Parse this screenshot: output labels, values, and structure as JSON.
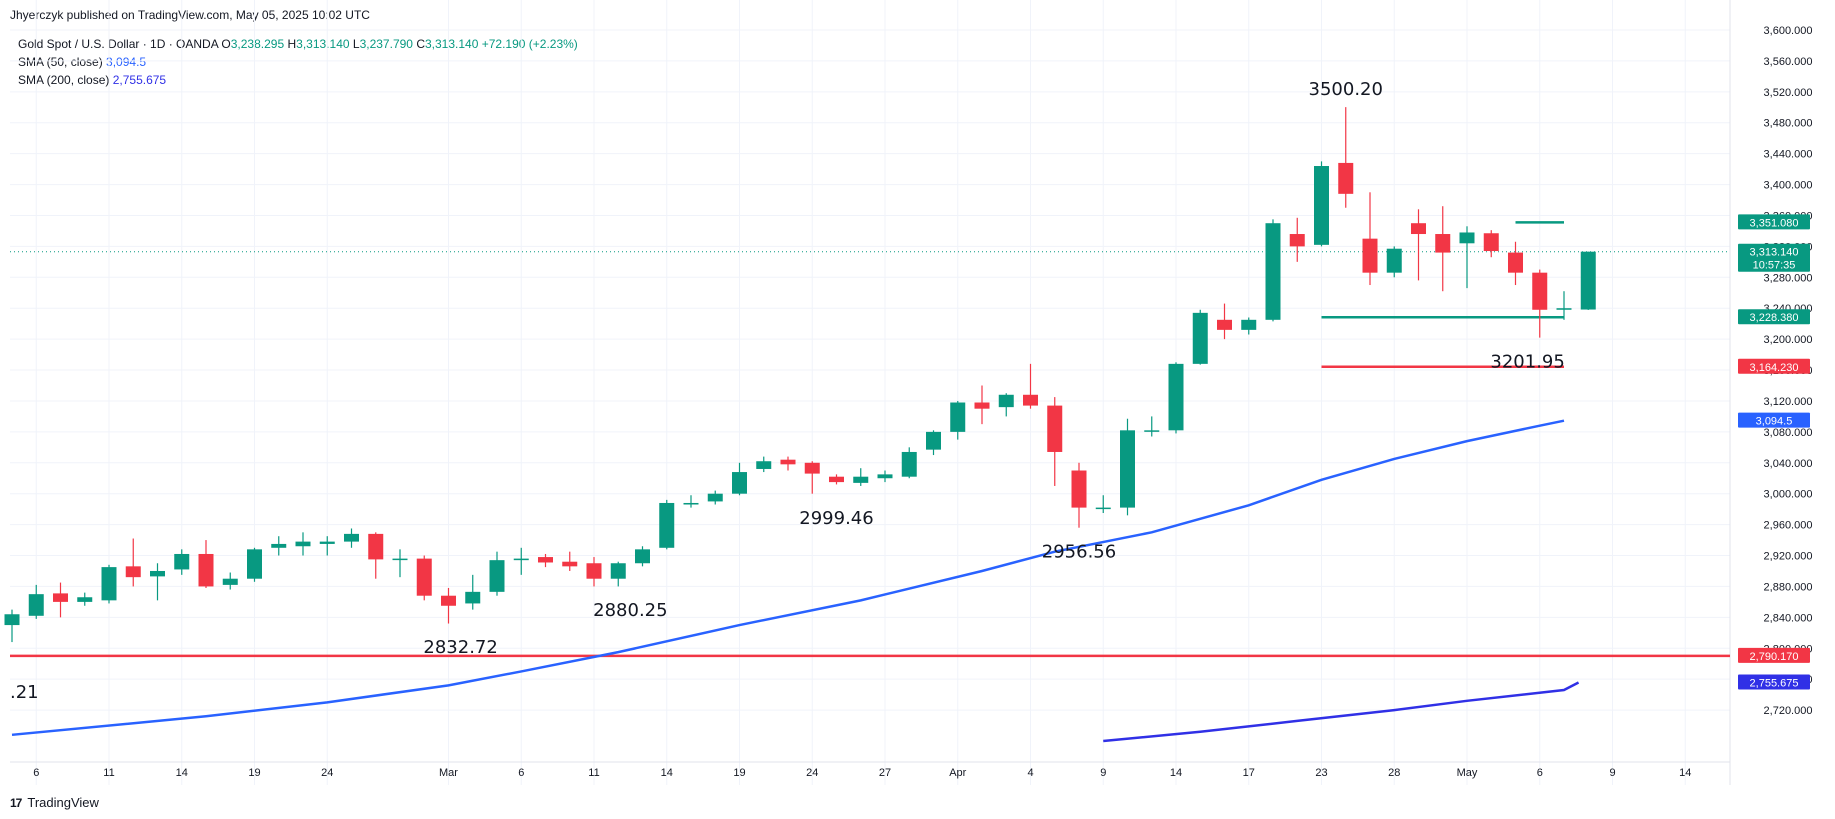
{
  "header": {
    "published": "Jhyerczyk published on TradingView.com, May 05, 2025 10:02 UTC"
  },
  "legend": {
    "symbol": "Gold Spot / U.S. Dollar · 1D · OANDA",
    "o_label": "O",
    "o": "3,238.295",
    "h_label": "H",
    "h": "3,313.140",
    "l_label": "L",
    "l": "3,237.790",
    "c_label": "C",
    "c": "3,313.140",
    "change": "+72.190 (+2.23%)",
    "sma50_label": "SMA (50, close)",
    "sma50_value": "3,094.5",
    "sma200_label": "SMA (200, close)",
    "sma200_value": "2,755.675"
  },
  "footer": {
    "brand": "TradingView",
    "logo_glyph": "17"
  },
  "chart_data": {
    "type": "candlestick",
    "ylim": [
      2680,
      3600
    ],
    "y_ticks": [
      2720,
      2760,
      2800,
      2840,
      2880,
      2920,
      2960,
      3000,
      3040,
      3080,
      3120,
      3160,
      3200,
      3240,
      3280,
      3320,
      3360,
      3400,
      3440,
      3480,
      3520,
      3560,
      3600
    ],
    "x_ticks": [
      {
        "label": "6",
        "index": 1
      },
      {
        "label": "11",
        "index": 4
      },
      {
        "label": "14",
        "index": 7
      },
      {
        "label": "19",
        "index": 10
      },
      {
        "label": "24",
        "index": 13
      },
      {
        "label": "Mar",
        "index": 18
      },
      {
        "label": "6",
        "index": 21
      },
      {
        "label": "11",
        "index": 24
      },
      {
        "label": "14",
        "index": 27
      },
      {
        "label": "19",
        "index": 30
      },
      {
        "label": "24",
        "index": 33
      },
      {
        "label": "27",
        "index": 36
      },
      {
        "label": "Apr",
        "index": 39
      },
      {
        "label": "4",
        "index": 42
      },
      {
        "label": "9",
        "index": 45
      },
      {
        "label": "14",
        "index": 48
      },
      {
        "label": "17",
        "index": 51
      },
      {
        "label": "23",
        "index": 54
      },
      {
        "label": "28",
        "index": 57
      },
      {
        "label": "May",
        "index": 60
      },
      {
        "label": "6",
        "index": 63
      },
      {
        "label": "9",
        "index": 66
      },
      {
        "label": "14",
        "index": 69
      }
    ],
    "candles": [
      {
        "o": 2830,
        "h": 2850,
        "l": 2808,
        "c": 2844
      },
      {
        "o": 2842,
        "h": 2882,
        "l": 2838,
        "c": 2870
      },
      {
        "o": 2871,
        "h": 2885,
        "l": 2840,
        "c": 2860
      },
      {
        "o": 2860,
        "h": 2872,
        "l": 2855,
        "c": 2866
      },
      {
        "o": 2862,
        "h": 2908,
        "l": 2858,
        "c": 2905
      },
      {
        "o": 2906,
        "h": 2942,
        "l": 2880,
        "c": 2892
      },
      {
        "o": 2893,
        "h": 2910,
        "l": 2862,
        "c": 2900
      },
      {
        "o": 2902,
        "h": 2928,
        "l": 2895,
        "c": 2922
      },
      {
        "o": 2922,
        "h": 2940,
        "l": 2878,
        "c": 2880
      },
      {
        "o": 2882,
        "h": 2898,
        "l": 2876,
        "c": 2890
      },
      {
        "o": 2890,
        "h": 2930,
        "l": 2886,
        "c": 2928
      },
      {
        "o": 2930,
        "h": 2945,
        "l": 2920,
        "c": 2935
      },
      {
        "o": 2932,
        "h": 2950,
        "l": 2920,
        "c": 2938
      },
      {
        "o": 2935,
        "h": 2945,
        "l": 2920,
        "c": 2938
      },
      {
        "o": 2938,
        "h": 2955,
        "l": 2930,
        "c": 2948
      },
      {
        "o": 2948,
        "h": 2950,
        "l": 2890,
        "c": 2915
      },
      {
        "o": 2915,
        "h": 2928,
        "l": 2892,
        "c": 2916
      },
      {
        "o": 2916,
        "h": 2920,
        "l": 2862,
        "c": 2868
      },
      {
        "o": 2868,
        "h": 2878,
        "l": 2832,
        "c": 2855
      },
      {
        "o": 2858,
        "h": 2895,
        "l": 2850,
        "c": 2873
      },
      {
        "o": 2873,
        "h": 2925,
        "l": 2868,
        "c": 2914
      },
      {
        "o": 2914,
        "h": 2930,
        "l": 2895,
        "c": 2916
      },
      {
        "o": 2918,
        "h": 2922,
        "l": 2905,
        "c": 2911
      },
      {
        "o": 2912,
        "h": 2925,
        "l": 2900,
        "c": 2906
      },
      {
        "o": 2910,
        "h": 2918,
        "l": 2880,
        "c": 2890
      },
      {
        "o": 2890,
        "h": 2912,
        "l": 2880,
        "c": 2910
      },
      {
        "o": 2910,
        "h": 2932,
        "l": 2906,
        "c": 2928
      },
      {
        "o": 2930,
        "h": 2992,
        "l": 2928,
        "c": 2988
      },
      {
        "o": 2986,
        "h": 2998,
        "l": 2982,
        "c": 2988
      },
      {
        "o": 2990,
        "h": 3004,
        "l": 2986,
        "c": 3000
      },
      {
        "o": 3000,
        "h": 3040,
        "l": 2998,
        "c": 3028
      },
      {
        "o": 3032,
        "h": 3048,
        "l": 3028,
        "c": 3042
      },
      {
        "o": 3044,
        "h": 3048,
        "l": 3030,
        "c": 3038
      },
      {
        "o": 3040,
        "h": 3042,
        "l": 3000,
        "c": 3026
      },
      {
        "o": 3022,
        "h": 3025,
        "l": 3012,
        "c": 3015
      },
      {
        "o": 3014,
        "h": 3033,
        "l": 3010,
        "c": 3022
      },
      {
        "o": 3020,
        "h": 3030,
        "l": 3015,
        "c": 3025
      },
      {
        "o": 3022,
        "h": 3060,
        "l": 3020,
        "c": 3054
      },
      {
        "o": 3057,
        "h": 3082,
        "l": 3050,
        "c": 3080
      },
      {
        "o": 3080,
        "h": 3120,
        "l": 3070,
        "c": 3118
      },
      {
        "o": 3118,
        "h": 3140,
        "l": 3090,
        "c": 3110
      },
      {
        "o": 3112,
        "h": 3130,
        "l": 3100,
        "c": 3128
      },
      {
        "o": 3128,
        "h": 3168,
        "l": 3110,
        "c": 3114
      },
      {
        "o": 3114,
        "h": 3125,
        "l": 3010,
        "c": 3054
      },
      {
        "o": 3030,
        "h": 3040,
        "l": 2956,
        "c": 2982
      },
      {
        "o": 2982,
        "h": 2998,
        "l": 2975,
        "c": 2982
      },
      {
        "o": 2982,
        "h": 3097,
        "l": 2972,
        "c": 3082
      },
      {
        "o": 3082,
        "h": 3100,
        "l": 3074,
        "c": 3082
      },
      {
        "o": 3082,
        "h": 3170,
        "l": 3078,
        "c": 3168
      },
      {
        "o": 3168,
        "h": 3238,
        "l": 3167,
        "c": 3234
      },
      {
        "o": 3225,
        "h": 3246,
        "l": 3200,
        "c": 3212
      },
      {
        "o": 3212,
        "h": 3228,
        "l": 3206,
        "c": 3225
      },
      {
        "o": 3225,
        "h": 3355,
        "l": 3223,
        "c": 3350
      },
      {
        "o": 3336,
        "h": 3357,
        "l": 3300,
        "c": 3320
      },
      {
        "o": 3322,
        "h": 3430,
        "l": 3320,
        "c": 3424
      },
      {
        "o": 3428,
        "h": 3500.2,
        "l": 3370,
        "c": 3388
      },
      {
        "o": 3330,
        "h": 3390,
        "l": 3270,
        "c": 3286
      },
      {
        "o": 3286,
        "h": 3320,
        "l": 3280,
        "c": 3317
      },
      {
        "o": 3350,
        "h": 3368,
        "l": 3276,
        "c": 3336
      },
      {
        "o": 3336,
        "h": 3372,
        "l": 3262,
        "c": 3312
      },
      {
        "o": 3324,
        "h": 3346,
        "l": 3266,
        "c": 3338
      },
      {
        "o": 3337,
        "h": 3341,
        "l": 3306,
        "c": 3314
      },
      {
        "o": 3312,
        "h": 3326,
        "l": 3270,
        "c": 3286
      },
      {
        "o": 3286,
        "h": 3290,
        "l": 3201.95,
        "c": 3238
      },
      {
        "o": 3238,
        "h": 3262,
        "l": 3225,
        "c": 3240
      },
      {
        "o": 3238.295,
        "h": 3313.14,
        "l": 3237.79,
        "c": 3313.14
      }
    ],
    "sma50": [
      [
        0,
        2688
      ],
      [
        8,
        2712
      ],
      [
        13,
        2730
      ],
      [
        18,
        2752
      ],
      [
        21,
        2770
      ],
      [
        25,
        2795
      ],
      [
        30,
        2830
      ],
      [
        35,
        2862
      ],
      [
        40,
        2900
      ],
      [
        43,
        2925
      ],
      [
        47,
        2950
      ],
      [
        51,
        2985
      ],
      [
        54,
        3018
      ],
      [
        57,
        3045
      ],
      [
        60,
        3068
      ],
      [
        63,
        3088
      ],
      [
        64,
        3094.5
      ]
    ],
    "sma200": [
      [
        45,
        2680
      ],
      [
        49,
        2692
      ],
      [
        53,
        2706
      ],
      [
        57,
        2720
      ],
      [
        60,
        2732
      ],
      [
        64,
        2746
      ],
      [
        64.6,
        2755.675
      ]
    ],
    "annotations": [
      {
        "text": "3500.20",
        "index": 55,
        "price": 3500.2,
        "position": "above"
      },
      {
        "text": "3201.95",
        "index": 62.5,
        "price": 3201.95,
        "position": "below"
      },
      {
        "text": "2999.46",
        "index": 34,
        "price": 2999.46,
        "position": "below"
      },
      {
        "text": "2956.56",
        "index": 44,
        "price": 2956.56,
        "position": "below"
      },
      {
        "text": "2880.25",
        "index": 25.5,
        "price": 2880.25,
        "position": "below"
      },
      {
        "text": "2832.72",
        "index": 18.5,
        "price": 2832.72,
        "position": "below"
      },
      {
        "text": ".21",
        "index": -0.5,
        "price": 2772,
        "position": "left"
      }
    ],
    "hlines": [
      {
        "price": 3351.08,
        "label": "3,351.080",
        "color": "#089981",
        "from_index": 62,
        "to_index": 64
      },
      {
        "price": 3228.38,
        "label": "3,228.380",
        "color": "#089981",
        "from_index": 54,
        "to_index": 64
      },
      {
        "price": 3164.23,
        "label": "3,164.230",
        "color": "#f23645",
        "from_index": 54,
        "to_index": 64
      },
      {
        "price": 2790.17,
        "label": "2,790.170",
        "color": "#f23645",
        "from_index": -1,
        "to_index": 999
      }
    ],
    "last_price": {
      "price": 3313.14,
      "label": "3,313.140",
      "countdown": "10:57:35",
      "color": "#089981"
    },
    "price_labels": [
      {
        "price": 3094.5,
        "label": "3,094.5",
        "color": "#2962ff"
      },
      {
        "price": 2755.675,
        "label": "2,755.675",
        "color": "#3030e6"
      }
    ],
    "colors": {
      "up": "#089981",
      "down": "#f23645",
      "sma50": "#2962ff",
      "sma200": "#3030e6",
      "grid": "#f0f3fa",
      "axis_text": "#131722"
    }
  }
}
